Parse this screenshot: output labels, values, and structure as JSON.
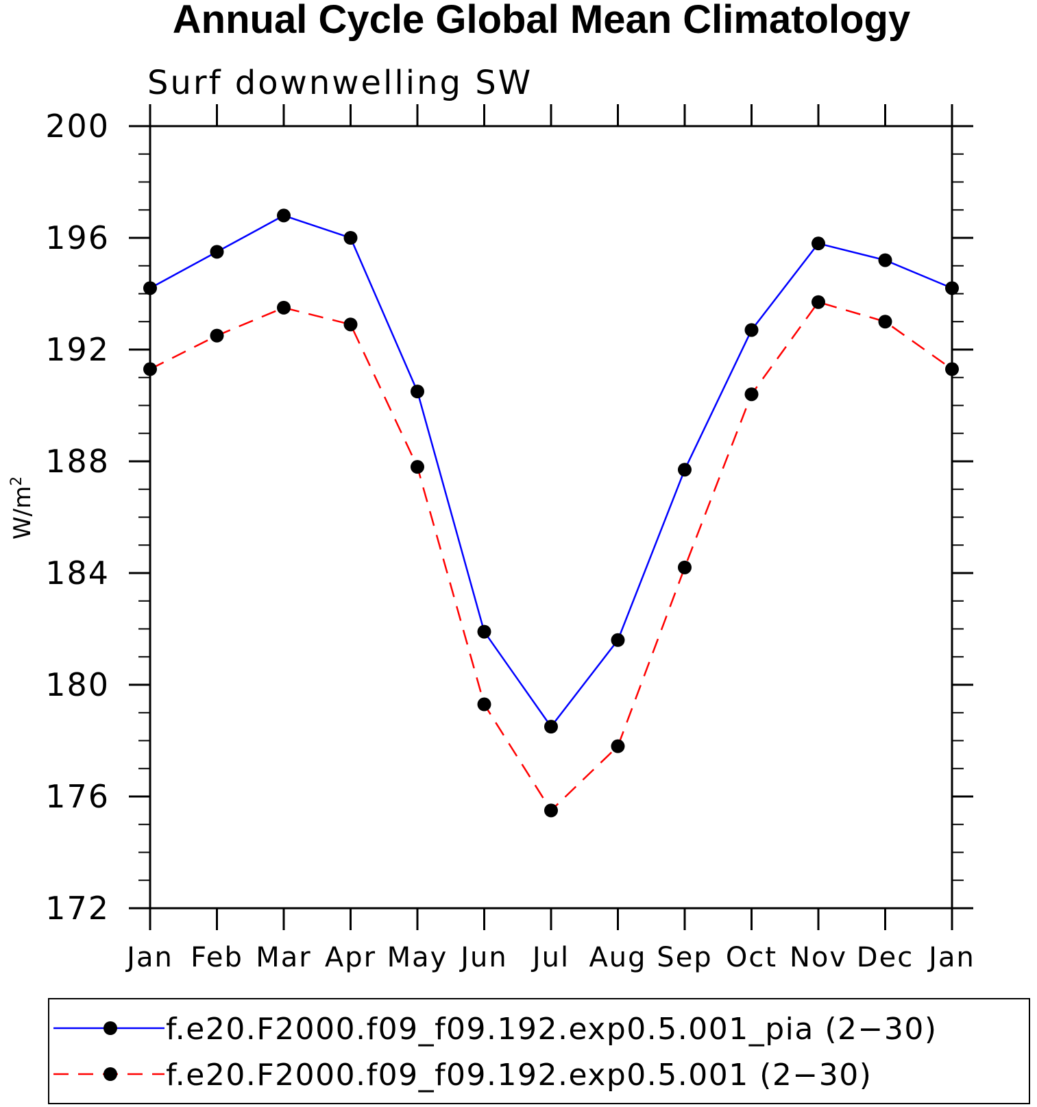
{
  "chart_data": {
    "type": "line",
    "title": "Annual Cycle Global Mean Climatology",
    "subtitle": "Surf downwelling SW",
    "xlabel": "",
    "ylabel": "W/m",
    "ylabel_superscript": "2",
    "categories": [
      "Jan",
      "Feb",
      "Mar",
      "Apr",
      "May",
      "Jun",
      "Jul",
      "Aug",
      "Sep",
      "Oct",
      "Nov",
      "Dec",
      "Jan"
    ],
    "ylim": [
      172,
      200
    ],
    "yticks": [
      172,
      176,
      180,
      184,
      188,
      192,
      196,
      200
    ],
    "yticks_minor_step": 1,
    "grid": false,
    "legend_position": "bottom",
    "series": [
      {
        "name": "f.e20.F2000.f09_f09.192.exp0.5.001_pia (2−30)",
        "color": "#0000ff",
        "dash": "solid",
        "marker": "filled-circle",
        "values": [
          194.2,
          195.5,
          196.8,
          196.0,
          190.5,
          181.9,
          178.5,
          181.6,
          187.7,
          192.7,
          195.8,
          195.2,
          194.2
        ]
      },
      {
        "name": "f.e20.F2000.f09_f09.192.exp0.5.001 (2−30)",
        "color": "#ff0000",
        "dash": "dashed",
        "marker": "filled-circle",
        "values": [
          191.3,
          192.5,
          193.5,
          192.9,
          187.8,
          179.3,
          175.5,
          177.8,
          184.2,
          190.4,
          193.7,
          193.0,
          191.3
        ]
      }
    ]
  }
}
